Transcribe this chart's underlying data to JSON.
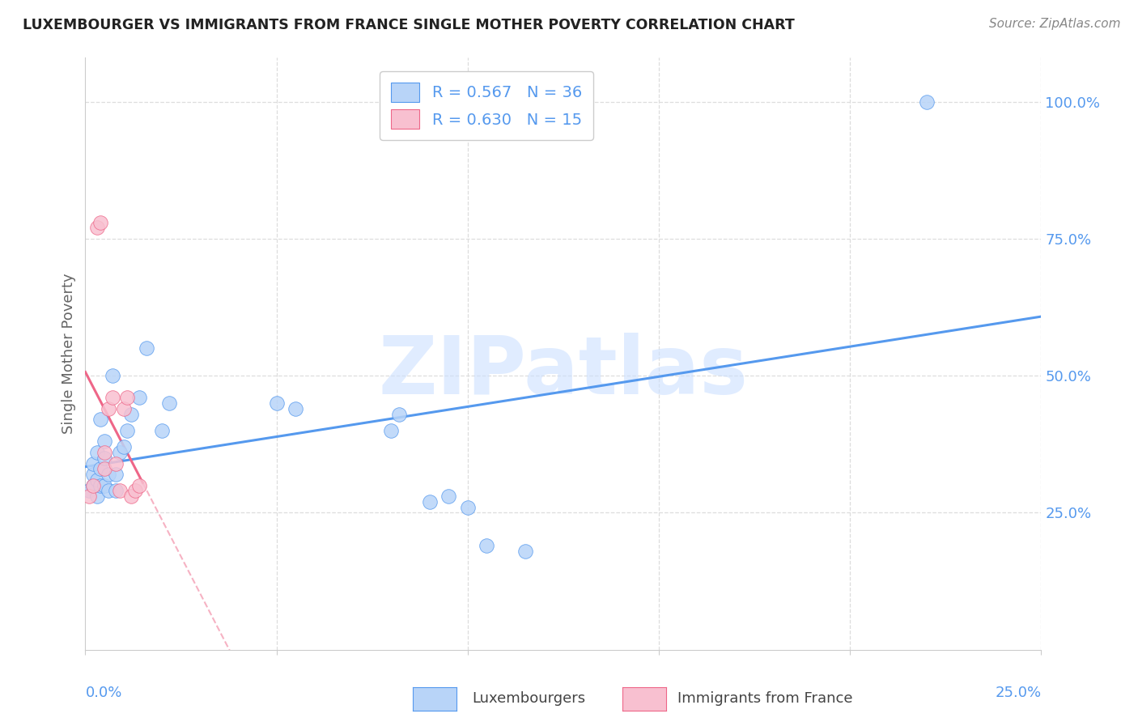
{
  "title": "LUXEMBOURGER VS IMMIGRANTS FROM FRANCE SINGLE MOTHER POVERTY CORRELATION CHART",
  "source": "Source: ZipAtlas.com",
  "ylabel": "Single Mother Poverty",
  "legend_lux": "R = 0.567   N = 36",
  "legend_fra": "R = 0.630   N = 15",
  "lux_color": "#b8d4f8",
  "fra_color": "#f8c0d0",
  "lux_line_color": "#5599ee",
  "fra_line_color": "#ee6688",
  "lux_scatter_x": [
    0.001,
    0.002,
    0.002,
    0.002,
    0.003,
    0.003,
    0.003,
    0.004,
    0.004,
    0.004,
    0.005,
    0.005,
    0.005,
    0.006,
    0.006,
    0.007,
    0.008,
    0.008,
    0.009,
    0.01,
    0.011,
    0.012,
    0.014,
    0.016,
    0.02,
    0.022,
    0.05,
    0.055,
    0.08,
    0.082,
    0.09,
    0.095,
    0.1,
    0.105,
    0.115,
    0.22
  ],
  "lux_scatter_y": [
    0.29,
    0.3,
    0.32,
    0.34,
    0.28,
    0.31,
    0.36,
    0.3,
    0.33,
    0.42,
    0.3,
    0.35,
    0.38,
    0.29,
    0.32,
    0.5,
    0.29,
    0.32,
    0.36,
    0.37,
    0.4,
    0.43,
    0.46,
    0.55,
    0.4,
    0.45,
    0.45,
    0.44,
    0.4,
    0.43,
    0.27,
    0.28,
    0.26,
    0.19,
    0.18,
    1.0
  ],
  "fra_scatter_x": [
    0.001,
    0.002,
    0.003,
    0.004,
    0.005,
    0.005,
    0.006,
    0.007,
    0.008,
    0.009,
    0.01,
    0.011,
    0.012,
    0.013,
    0.014
  ],
  "fra_scatter_y": [
    0.28,
    0.3,
    0.77,
    0.78,
    0.33,
    0.36,
    0.44,
    0.46,
    0.34,
    0.29,
    0.44,
    0.46,
    0.28,
    0.29,
    0.3
  ],
  "xlim": [
    0.0,
    0.25
  ],
  "ylim": [
    0.0,
    1.08
  ],
  "x_ticks": [
    0.0,
    0.05,
    0.1,
    0.15,
    0.2,
    0.25
  ],
  "y_ticks_right": [
    0.25,
    0.5,
    0.75,
    1.0
  ],
  "y_tick_labels": [
    "25.0%",
    "50.0%",
    "75.0%",
    "100.0%"
  ],
  "watermark_text": "ZIPatlas",
  "watermark_color": "#cce0ff",
  "background_color": "#ffffff",
  "grid_color": "#dddddd",
  "title_color": "#222222",
  "source_color": "#888888",
  "axis_label_color": "#666666"
}
